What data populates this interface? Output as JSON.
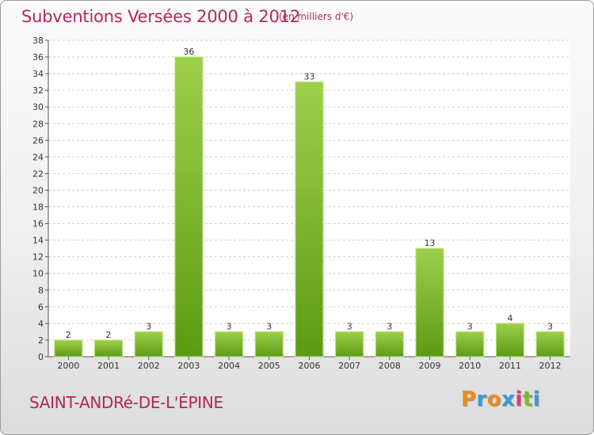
{
  "chart_data": {
    "type": "bar",
    "title": "Subventions Versées 2000 à 2012",
    "subtitle": "(en milliers d'€)",
    "categories": [
      "2000",
      "2001",
      "2002",
      "2003",
      "2004",
      "2005",
      "2006",
      "2007",
      "2008",
      "2009",
      "2010",
      "2011",
      "2012"
    ],
    "values": [
      2,
      2,
      3,
      36,
      3,
      3,
      33,
      3,
      3,
      13,
      3,
      4,
      3
    ],
    "ylim": [
      0,
      38
    ],
    "yticks": [
      0,
      2,
      4,
      6,
      8,
      10,
      12,
      14,
      16,
      18,
      20,
      22,
      24,
      26,
      28,
      30,
      32,
      34,
      36,
      38
    ],
    "grid": true,
    "bar_color": "#7dbb2a"
  },
  "footer": {
    "commune": "SAINT-ANDRé-DE-L'ÉPINE"
  },
  "logo": {
    "letters": [
      "P",
      "r",
      "o",
      "x",
      "i",
      "t",
      "i"
    ],
    "colors": [
      "#f08a1c",
      "#3a9ad9",
      "#f08a1c",
      "#3a9ad9",
      "#e23a7a",
      "#7dbb2a",
      "#3a9ad9"
    ]
  }
}
